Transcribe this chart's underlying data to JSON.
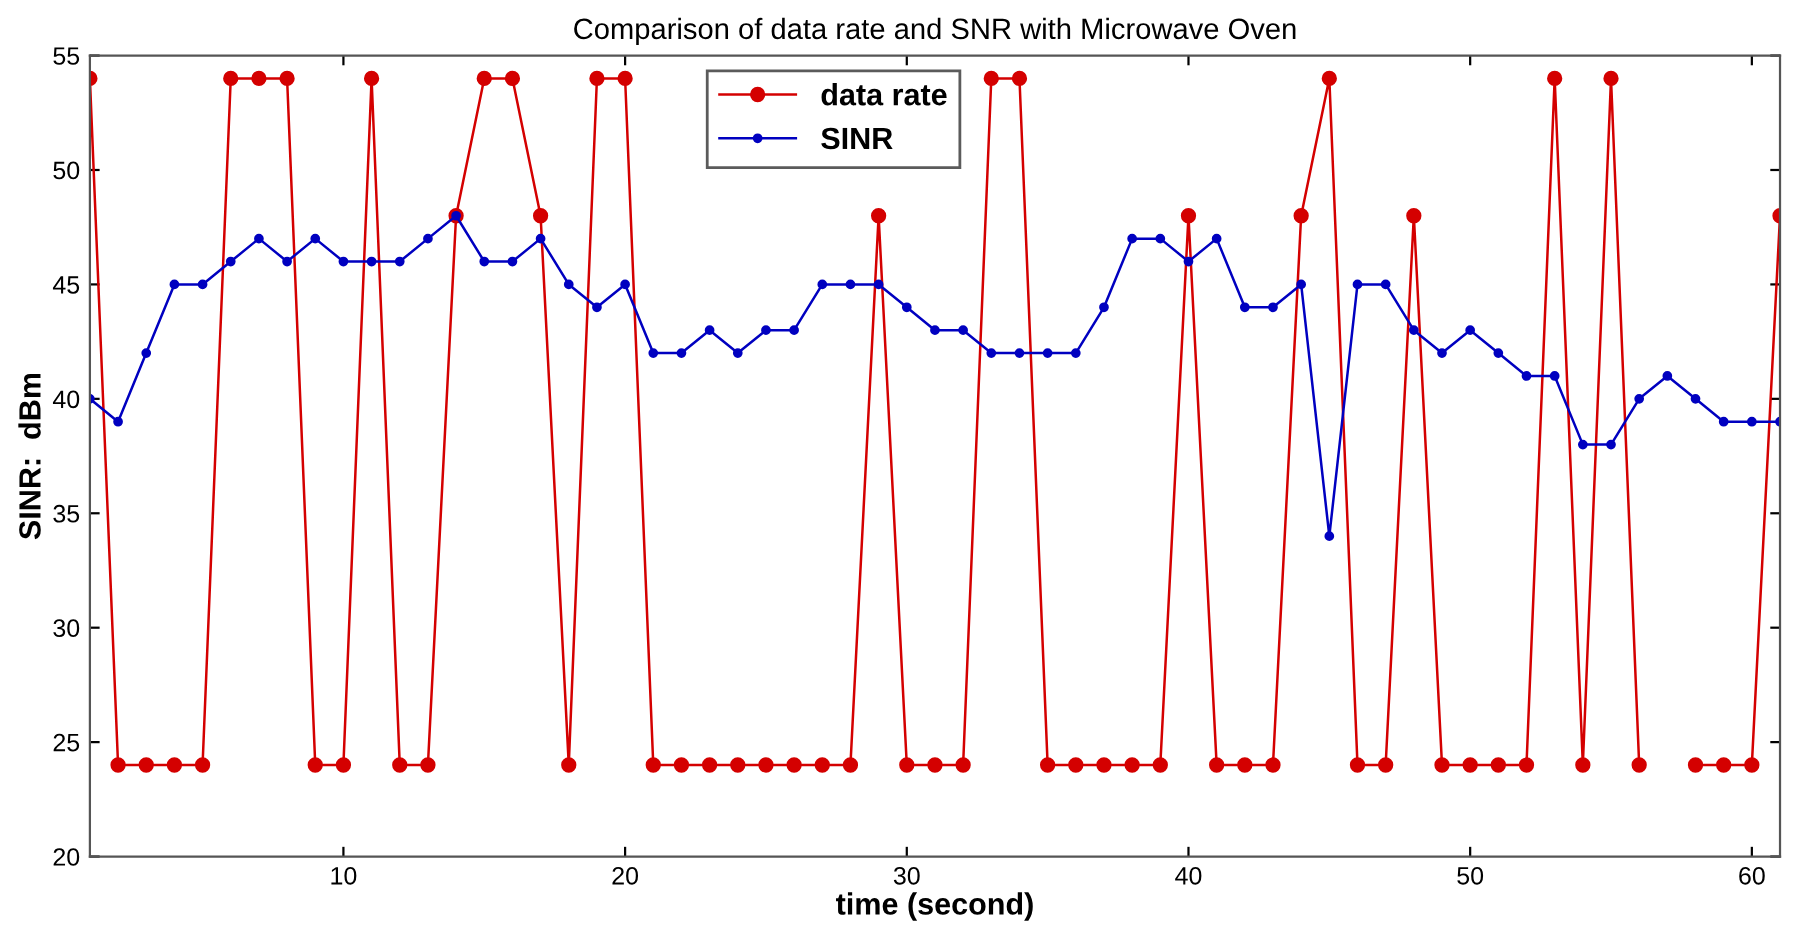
{
  "chart_data": {
    "type": "line",
    "title": "Comparison of data rate and SNR with Microwave Oven",
    "xlabel": "time (second)",
    "ylabel": "SINR:  dBm",
    "x": [
      1,
      2,
      3,
      4,
      5,
      6,
      7,
      8,
      9,
      10,
      11,
      12,
      13,
      14,
      15,
      16,
      17,
      18,
      19,
      20,
      21,
      22,
      23,
      24,
      25,
      26,
      27,
      28,
      29,
      30,
      31,
      32,
      33,
      34,
      35,
      36,
      37,
      38,
      39,
      40,
      41,
      42,
      43,
      44,
      45,
      46,
      47,
      48,
      49,
      50,
      51,
      52,
      53,
      54,
      55,
      56,
      57,
      58,
      59,
      60,
      61
    ],
    "series": [
      {
        "name": "data rate",
        "color": "#d40000",
        "values": [
          54,
          24,
          24,
          24,
          24,
          54,
          54,
          54,
          24,
          24,
          54,
          24,
          24,
          48,
          54,
          54,
          48,
          24,
          54,
          54,
          24,
          24,
          24,
          24,
          24,
          24,
          24,
          24,
          48,
          24,
          24,
          24,
          54,
          54,
          24,
          24,
          24,
          24,
          24,
          48,
          24,
          24,
          24,
          48,
          54,
          24,
          24,
          48,
          24,
          24,
          24,
          24,
          54,
          24,
          54,
          24,
          null,
          24,
          24,
          24,
          48
        ]
      },
      {
        "name": "SINR",
        "color": "#0000c0",
        "values": [
          40,
          39,
          42,
          45,
          45,
          46,
          47,
          46,
          47,
          46,
          46,
          46,
          47,
          48,
          46,
          46,
          47,
          45,
          44,
          45,
          42,
          42,
          43,
          42,
          43,
          43,
          45,
          45,
          45,
          44,
          43,
          43,
          42,
          42,
          42,
          42,
          44,
          47,
          47,
          46,
          47,
          44,
          44,
          45,
          34,
          45,
          45,
          43,
          42,
          43,
          42,
          41,
          41,
          38,
          38,
          40,
          41,
          40,
          39,
          39,
          39
        ]
      }
    ],
    "xlim": [
      1,
      61
    ],
    "ylim": [
      20,
      55
    ],
    "xticks": [
      10,
      20,
      30,
      40,
      50,
      60
    ],
    "yticks": [
      20,
      25,
      30,
      35,
      40,
      45,
      50,
      55
    ],
    "grid": false,
    "legend": "top",
    "marker": "circle",
    "line_style": "solid"
  }
}
